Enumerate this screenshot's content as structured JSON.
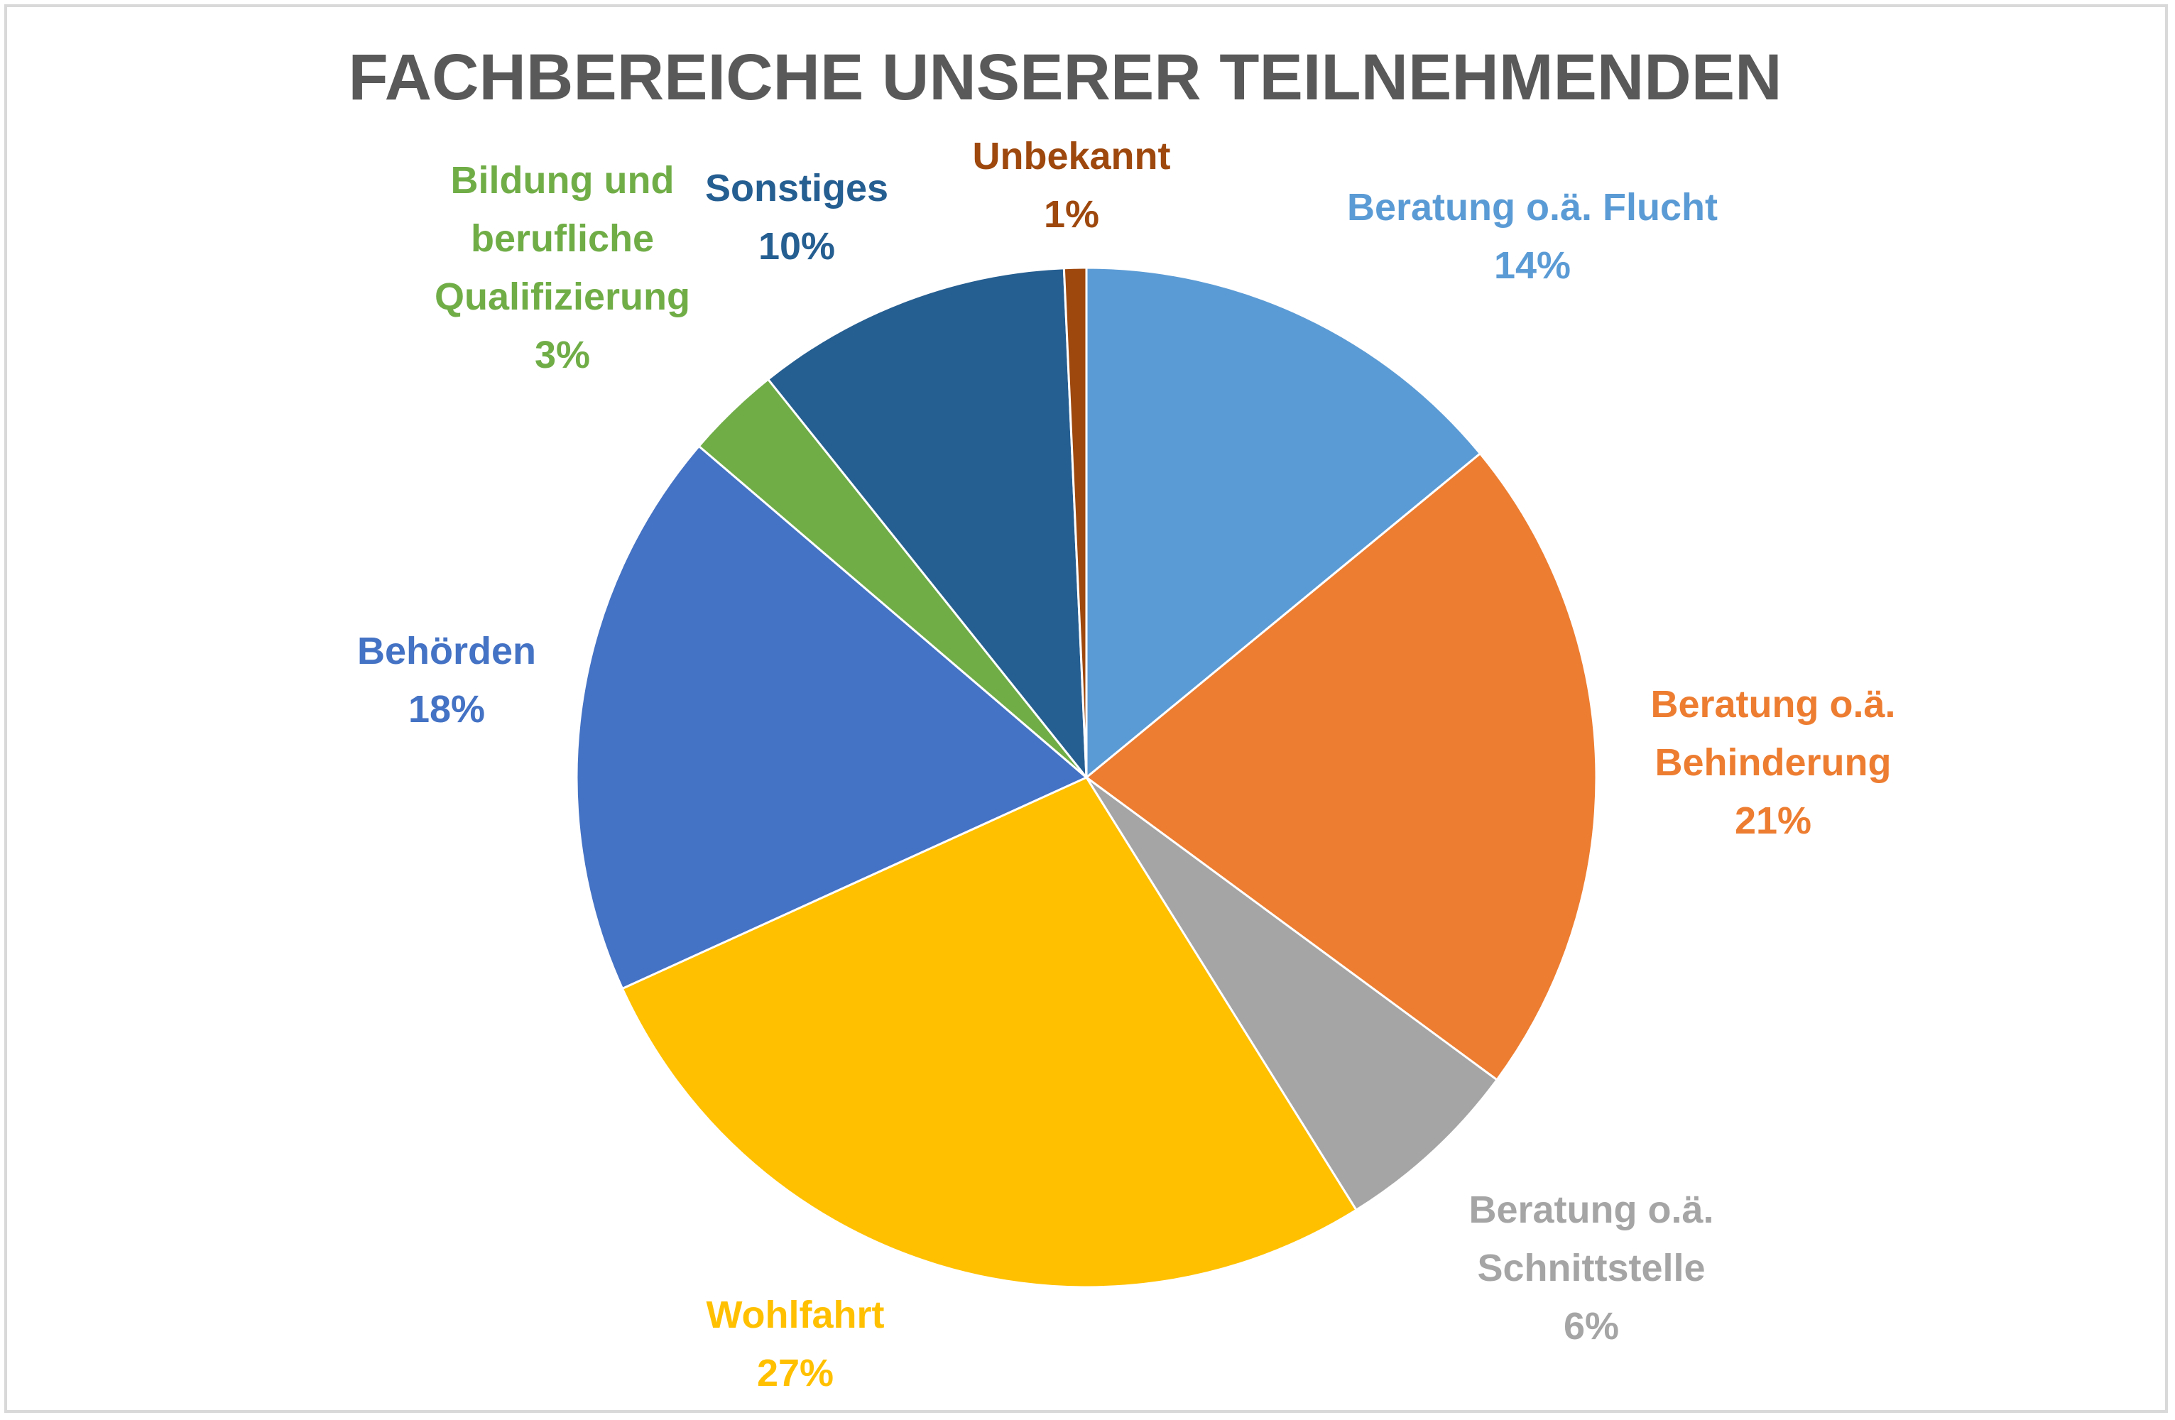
{
  "chart_data": {
    "type": "pie",
    "title": "FACHBEREICHE UNSERER TEILNEHMENDEN",
    "slices": [
      {
        "label": [
          "Beratung o.ä. Flucht"
        ],
        "percent_label": "14%",
        "value": 14,
        "color": "#5B9BD5"
      },
      {
        "label": [
          "Beratung o.ä.",
          "Behinderung"
        ],
        "percent_label": "21%",
        "value": 21,
        "color": "#ED7D31"
      },
      {
        "label": [
          "Beratung o.ä.",
          "Schnittstelle"
        ],
        "percent_label": "6%",
        "value": 6,
        "color": "#A5A5A5"
      },
      {
        "label": [
          "Wohlfahrt"
        ],
        "percent_label": "27%",
        "value": 27,
        "color": "#FFC000"
      },
      {
        "label": [
          "Behörden"
        ],
        "percent_label": "18%",
        "value": 18,
        "color": "#4472C4"
      },
      {
        "label": [
          "Bildung und",
          "berufliche",
          "Qualifizierung"
        ],
        "percent_label": "3%",
        "value": 3,
        "color": "#70AD47"
      },
      {
        "label": [
          "Sonstiges"
        ],
        "percent_label": "10%",
        "value": 10,
        "color": "#255E91"
      },
      {
        "label": [
          "Unbekannt"
        ],
        "percent_label": "1%",
        "value": 0.7,
        "color": "#9E480E"
      }
    ]
  }
}
